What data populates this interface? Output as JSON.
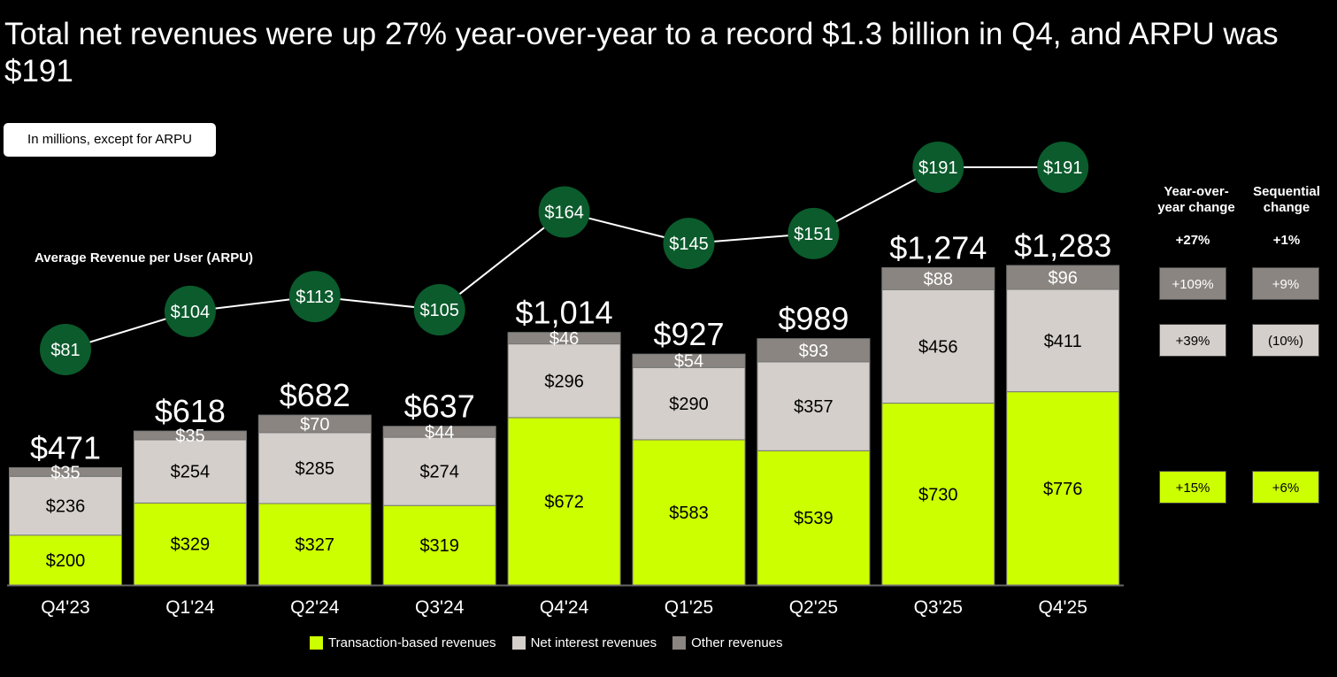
{
  "title": "Total net revenues were up 27% year-over-year to a record $1.3 billion in Q4, and ARPU was $191",
  "unit_note": "In millions, except for ARPU",
  "arpu_label": "Average Revenue per User (ARPU)",
  "colors": {
    "transaction": "#CCFF00",
    "net_interest": "#D4CFCA",
    "other": "#8A8580",
    "arpu": "#0B5B2C",
    "background": "#000000"
  },
  "chart_data": {
    "type": "bar",
    "stacked": true,
    "categories": [
      "Q4'23",
      "Q1'24",
      "Q2'24",
      "Q3'24",
      "Q4'24",
      "Q1'25",
      "Q2'25",
      "Q3'25",
      "Q4'25"
    ],
    "series": [
      {
        "name": "Transaction-based revenues",
        "values": [
          200,
          329,
          327,
          319,
          672,
          583,
          539,
          730,
          776
        ]
      },
      {
        "name": "Net interest revenues",
        "values": [
          236,
          254,
          285,
          274,
          296,
          290,
          357,
          456,
          411
        ]
      },
      {
        "name": "Other revenues",
        "values": [
          35,
          35,
          70,
          44,
          46,
          54,
          93,
          88,
          96
        ]
      }
    ],
    "totals": [
      "$471",
      "$618",
      "$682",
      "$637",
      "$1,014",
      "$927",
      "$989",
      "$1,274",
      "$1,283"
    ],
    "total_values": [
      471,
      618,
      682,
      637,
      1014,
      927,
      989,
      1274,
      1283
    ],
    "arpu": {
      "name": "Average Revenue per User (ARPU)",
      "type": "line",
      "values": [
        81,
        104,
        113,
        105,
        164,
        145,
        151,
        191,
        191
      ]
    },
    "legend_position": "bottom",
    "grid": false
  },
  "changes": {
    "yoy_header": "Year-over-year change",
    "seq_header": "Sequential change",
    "total": {
      "yoy": "+27%",
      "seq": "+1%"
    },
    "other": {
      "yoy": "+109%",
      "seq": "+9%"
    },
    "net_interest": {
      "yoy": "+39%",
      "seq": "(10%)"
    },
    "transaction": {
      "yoy": "+15%",
      "seq": "+6%"
    }
  },
  "legend": [
    "Transaction-based revenues",
    "Net interest revenues",
    "Other revenues"
  ]
}
